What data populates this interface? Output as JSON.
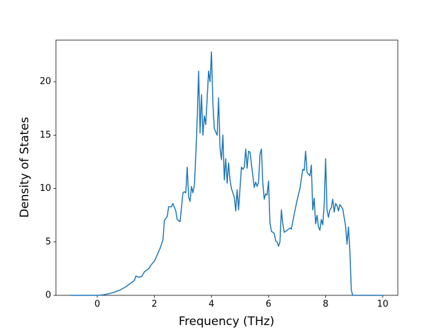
{
  "chart_data": {
    "type": "line",
    "xlabel": "Frequency (THz)",
    "ylabel": "Density of States",
    "x": [
      -0.95,
      0,
      0.2,
      0.4,
      0.6,
      0.8,
      1.0,
      1.2,
      1.3,
      1.35,
      1.45,
      1.55,
      1.65,
      1.8,
      1.9,
      2.0,
      2.1,
      2.2,
      2.3,
      2.35,
      2.45,
      2.5,
      2.6,
      2.65,
      2.75,
      2.8,
      2.9,
      3.0,
      3.05,
      3.1,
      3.15,
      3.2,
      3.25,
      3.3,
      3.35,
      3.4,
      3.45,
      3.5,
      3.55,
      3.6,
      3.65,
      3.7,
      3.75,
      3.8,
      3.85,
      3.9,
      3.95,
      4.0,
      4.05,
      4.1,
      4.2,
      4.25,
      4.3,
      4.35,
      4.4,
      4.45,
      4.5,
      4.55,
      4.6,
      4.65,
      4.7,
      4.8,
      4.85,
      4.9,
      4.95,
      5.0,
      5.05,
      5.1,
      5.15,
      5.2,
      5.25,
      5.3,
      5.35,
      5.45,
      5.5,
      5.55,
      5.6,
      5.65,
      5.7,
      5.75,
      5.8,
      5.85,
      5.9,
      5.95,
      6.0,
      6.05,
      6.1,
      6.2,
      6.25,
      6.3,
      6.35,
      6.4,
      6.45,
      6.5,
      6.55,
      6.65,
      6.75,
      6.8,
      6.9,
      7.0,
      7.1,
      7.2,
      7.25,
      7.3,
      7.35,
      7.45,
      7.5,
      7.55,
      7.6,
      7.65,
      7.7,
      7.75,
      7.8,
      7.85,
      7.9,
      7.95,
      8.0,
      8.05,
      8.1,
      8.15,
      8.2,
      8.25,
      8.3,
      8.35,
      8.4,
      8.45,
      8.5,
      8.6,
      8.7,
      8.75,
      8.8,
      8.85,
      8.9,
      8.95,
      10.0
    ],
    "series": [
      {
        "color": "#1f77b4",
        "values": [
          0,
          0,
          0.05,
          0.15,
          0.3,
          0.5,
          0.8,
          1.2,
          1.4,
          1.8,
          1.7,
          1.75,
          2.2,
          2.5,
          2.9,
          3.2,
          3.8,
          4.4,
          5.2,
          7.0,
          7.4,
          8.3,
          8.3,
          8.6,
          7.9,
          7.1,
          6.9,
          9.6,
          9.7,
          9.6,
          12.0,
          9.2,
          8.8,
          10.2,
          9.6,
          10.3,
          13.0,
          16.5,
          21.0,
          15.2,
          18.8,
          15.0,
          16.8,
          16.0,
          18.5,
          21.0,
          20.0,
          22.8,
          18.0,
          15.6,
          15.0,
          18.5,
          13.8,
          12.7,
          15.0,
          10.8,
          12.8,
          10.5,
          12.4,
          10.8,
          10.0,
          9.2,
          7.9,
          9.9,
          8.0,
          10.0,
          12.0,
          11.8,
          12.0,
          13.7,
          11.9,
          13.5,
          13.4,
          11.2,
          10.1,
          10.6,
          10.2,
          10.6,
          13.2,
          13.7,
          10.5,
          9.0,
          9.5,
          9.4,
          10.7,
          6.8,
          6.0,
          5.8,
          5.1,
          5.0,
          4.6,
          5.0,
          8.0,
          6.7,
          5.9,
          6.1,
          6.3,
          6.2,
          7.6,
          8.9,
          10.0,
          11.8,
          11.7,
          13.5,
          11.5,
          11.2,
          12.2,
          8.0,
          9.1,
          6.7,
          7.5,
          6.4,
          6.1,
          7.1,
          6.6,
          8.5,
          12.8,
          8.0,
          7.3,
          8.0,
          8.2,
          9.0,
          7.8,
          8.6,
          8.4,
          7.9,
          8.5,
          8.1,
          6.5,
          4.8,
          6.4,
          4.2,
          0.5,
          0,
          0
        ]
      }
    ],
    "xlim": [
      -1.45,
      10.53
    ],
    "ylim": [
      0,
      23.9
    ],
    "xticks": [
      0,
      2,
      4,
      6,
      8,
      10
    ],
    "yticks": [
      0,
      5,
      10,
      15,
      20
    ]
  }
}
